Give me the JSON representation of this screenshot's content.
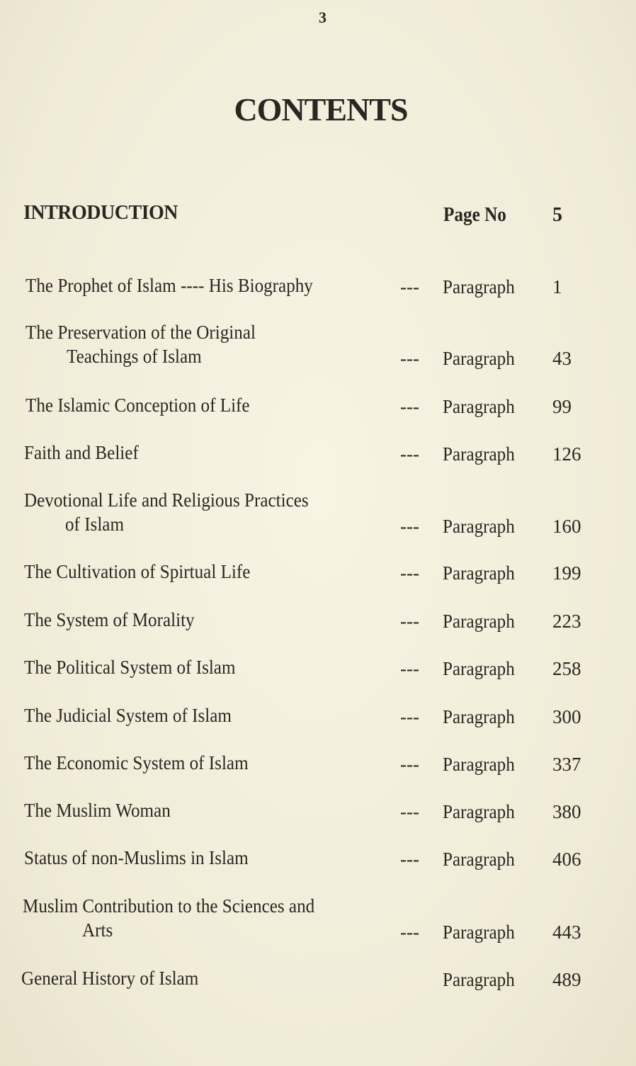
{
  "page_number": "3",
  "title": "CONTENTS",
  "introduction": {
    "label": "INTRODUCTION",
    "page_label": "Page No",
    "page": "5"
  },
  "entries": [
    {
      "lines": [
        "The Prophet of Islam ---- His Biography"
      ],
      "dash": "---",
      "ref_label": "Paragraph",
      "ref": "1"
    },
    {
      "lines": [
        "The Preservation of the Original",
        "Teachings of Islam"
      ],
      "dash": "---",
      "ref_label": "Paragraph",
      "ref": "43"
    },
    {
      "lines": [
        "The Islamic Conception of Life"
      ],
      "dash": "---",
      "ref_label": "Paragraph",
      "ref": "99"
    },
    {
      "lines": [
        "Faith and Belief"
      ],
      "dash": "---",
      "ref_label": "Paragraph",
      "ref": "126"
    },
    {
      "lines": [
        "Devotional Life and Religious Practices",
        "of Islam"
      ],
      "dash": "---",
      "ref_label": "Paragraph",
      "ref": "160"
    },
    {
      "lines": [
        "The Cultivation of Spirtual Life"
      ],
      "dash": "---",
      "ref_label": "Paragraph",
      "ref": "199"
    },
    {
      "lines": [
        "The System of Morality"
      ],
      "dash": "---",
      "ref_label": "Paragraph",
      "ref": "223"
    },
    {
      "lines": [
        "The Political System of Islam"
      ],
      "dash": "---",
      "ref_label": "Paragraph",
      "ref": "258"
    },
    {
      "lines": [
        "The Judicial System of Islam"
      ],
      "dash": "---",
      "ref_label": "Paragraph",
      "ref": "300"
    },
    {
      "lines": [
        "The Economic System of Islam"
      ],
      "dash": "---",
      "ref_label": "Paragraph",
      "ref": "337"
    },
    {
      "lines": [
        "The Muslim Woman"
      ],
      "dash": "---",
      "ref_label": "Paragraph",
      "ref": "380"
    },
    {
      "lines": [
        "Status of non-Muslims in Islam"
      ],
      "dash": "---",
      "ref_label": "Paragraph",
      "ref": "406"
    },
    {
      "lines": [
        "Muslim Contribution to the Sciences and",
        "Arts"
      ],
      "dash": "---",
      "ref_label": "Paragraph",
      "ref": "443"
    },
    {
      "lines": [
        "General History of Islam"
      ],
      "dash": "",
      "ref_label": "Paragraph",
      "ref": "489"
    }
  ]
}
